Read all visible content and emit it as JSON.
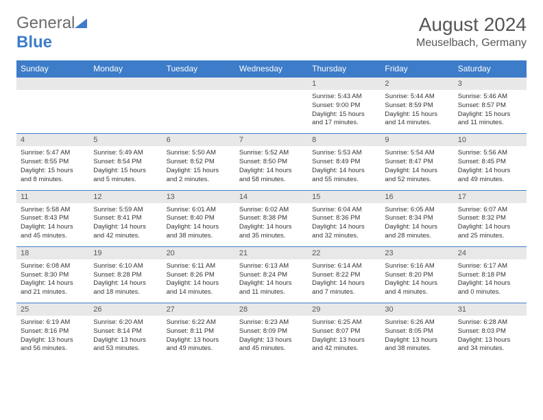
{
  "logo": {
    "general": "General",
    "blue": "Blue"
  },
  "title": "August 2024",
  "location": "Meuselbach, Germany",
  "colors": {
    "header_bg": "#3d7cc9",
    "daynum_bg": "#e8e8e8",
    "border": "#3d7cc9",
    "text": "#333333",
    "title": "#555555",
    "logo_gray": "#6b6b6b",
    "logo_blue": "#3d7cc9",
    "page_bg": "#ffffff"
  },
  "day_names": [
    "Sunday",
    "Monday",
    "Tuesday",
    "Wednesday",
    "Thursday",
    "Friday",
    "Saturday"
  ],
  "weeks": [
    {
      "nums": [
        "",
        "",
        "",
        "",
        "1",
        "2",
        "3"
      ],
      "cells": [
        "",
        "",
        "",
        "",
        "Sunrise: 5:43 AM\nSunset: 9:00 PM\nDaylight: 15 hours and 17 minutes.",
        "Sunrise: 5:44 AM\nSunset: 8:59 PM\nDaylight: 15 hours and 14 minutes.",
        "Sunrise: 5:46 AM\nSunset: 8:57 PM\nDaylight: 15 hours and 11 minutes."
      ]
    },
    {
      "nums": [
        "4",
        "5",
        "6",
        "7",
        "8",
        "9",
        "10"
      ],
      "cells": [
        "Sunrise: 5:47 AM\nSunset: 8:55 PM\nDaylight: 15 hours and 8 minutes.",
        "Sunrise: 5:49 AM\nSunset: 8:54 PM\nDaylight: 15 hours and 5 minutes.",
        "Sunrise: 5:50 AM\nSunset: 8:52 PM\nDaylight: 15 hours and 2 minutes.",
        "Sunrise: 5:52 AM\nSunset: 8:50 PM\nDaylight: 14 hours and 58 minutes.",
        "Sunrise: 5:53 AM\nSunset: 8:49 PM\nDaylight: 14 hours and 55 minutes.",
        "Sunrise: 5:54 AM\nSunset: 8:47 PM\nDaylight: 14 hours and 52 minutes.",
        "Sunrise: 5:56 AM\nSunset: 8:45 PM\nDaylight: 14 hours and 49 minutes."
      ]
    },
    {
      "nums": [
        "11",
        "12",
        "13",
        "14",
        "15",
        "16",
        "17"
      ],
      "cells": [
        "Sunrise: 5:58 AM\nSunset: 8:43 PM\nDaylight: 14 hours and 45 minutes.",
        "Sunrise: 5:59 AM\nSunset: 8:41 PM\nDaylight: 14 hours and 42 minutes.",
        "Sunrise: 6:01 AM\nSunset: 8:40 PM\nDaylight: 14 hours and 38 minutes.",
        "Sunrise: 6:02 AM\nSunset: 8:38 PM\nDaylight: 14 hours and 35 minutes.",
        "Sunrise: 6:04 AM\nSunset: 8:36 PM\nDaylight: 14 hours and 32 minutes.",
        "Sunrise: 6:05 AM\nSunset: 8:34 PM\nDaylight: 14 hours and 28 minutes.",
        "Sunrise: 6:07 AM\nSunset: 8:32 PM\nDaylight: 14 hours and 25 minutes."
      ]
    },
    {
      "nums": [
        "18",
        "19",
        "20",
        "21",
        "22",
        "23",
        "24"
      ],
      "cells": [
        "Sunrise: 6:08 AM\nSunset: 8:30 PM\nDaylight: 14 hours and 21 minutes.",
        "Sunrise: 6:10 AM\nSunset: 8:28 PM\nDaylight: 14 hours and 18 minutes.",
        "Sunrise: 6:11 AM\nSunset: 8:26 PM\nDaylight: 14 hours and 14 minutes.",
        "Sunrise: 6:13 AM\nSunset: 8:24 PM\nDaylight: 14 hours and 11 minutes.",
        "Sunrise: 6:14 AM\nSunset: 8:22 PM\nDaylight: 14 hours and 7 minutes.",
        "Sunrise: 6:16 AM\nSunset: 8:20 PM\nDaylight: 14 hours and 4 minutes.",
        "Sunrise: 6:17 AM\nSunset: 8:18 PM\nDaylight: 14 hours and 0 minutes."
      ]
    },
    {
      "nums": [
        "25",
        "26",
        "27",
        "28",
        "29",
        "30",
        "31"
      ],
      "cells": [
        "Sunrise: 6:19 AM\nSunset: 8:16 PM\nDaylight: 13 hours and 56 minutes.",
        "Sunrise: 6:20 AM\nSunset: 8:14 PM\nDaylight: 13 hours and 53 minutes.",
        "Sunrise: 6:22 AM\nSunset: 8:11 PM\nDaylight: 13 hours and 49 minutes.",
        "Sunrise: 6:23 AM\nSunset: 8:09 PM\nDaylight: 13 hours and 45 minutes.",
        "Sunrise: 6:25 AM\nSunset: 8:07 PM\nDaylight: 13 hours and 42 minutes.",
        "Sunrise: 6:26 AM\nSunset: 8:05 PM\nDaylight: 13 hours and 38 minutes.",
        "Sunrise: 6:28 AM\nSunset: 8:03 PM\nDaylight: 13 hours and 34 minutes."
      ]
    }
  ]
}
